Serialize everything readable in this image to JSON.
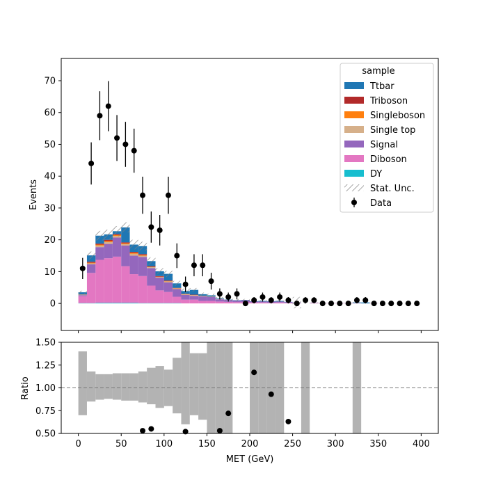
{
  "chart_data": {
    "type": "bar",
    "upper": {
      "ylabel": "Events",
      "ylim": [
        -8.5,
        77
      ],
      "yticks": [
        0,
        10,
        20,
        30,
        40,
        50,
        60,
        70
      ]
    },
    "lower": {
      "ylabel": "Ratio",
      "ylim": [
        0.5,
        1.5
      ],
      "yticks": [
        "0.50",
        "0.75",
        "1.00",
        "1.25",
        "1.50"
      ],
      "reference_line": 1.0
    },
    "xlabel": "MET (GeV)",
    "xlim": [
      -20,
      420
    ],
    "xticks": [
      0,
      50,
      100,
      150,
      200,
      250,
      300,
      350,
      400
    ],
    "bin_edges": [
      0,
      10,
      20,
      30,
      40,
      50,
      60,
      70,
      80,
      90,
      100,
      110,
      120,
      130,
      140,
      150,
      160,
      170,
      180,
      190,
      200,
      210,
      220,
      230,
      240,
      250,
      260,
      270,
      280,
      290,
      300,
      310,
      320,
      330,
      340,
      350,
      360,
      370,
      380,
      390,
      400
    ],
    "legend": {
      "title": "sample",
      "position": "top-right",
      "stack_order_bottom_to_top": [
        "DY",
        "Diboson",
        "Signal",
        "Single top",
        "Singleboson",
        "Triboson",
        "Ttbar"
      ],
      "entries": [
        {
          "label": "Ttbar",
          "kind": "patch",
          "color": "#1f77b4"
        },
        {
          "label": "Triboson",
          "kind": "patch",
          "color": "#b22a2a"
        },
        {
          "label": "Singleboson",
          "kind": "patch",
          "color": "#ff7f0e"
        },
        {
          "label": "Single top",
          "kind": "patch",
          "color": "#d6b08a"
        },
        {
          "label": "Signal",
          "kind": "patch",
          "color": "#9467bd"
        },
        {
          "label": "Diboson",
          "kind": "patch",
          "color": "#e377c2"
        },
        {
          "label": "DY",
          "kind": "patch",
          "color": "#17becf"
        },
        {
          "label": "Stat. Unc.",
          "kind": "hatch",
          "color": "#7f7f7f"
        },
        {
          "label": "Data",
          "kind": "marker",
          "color": "#000000"
        }
      ]
    },
    "series": [
      {
        "name": "DY",
        "color": "#17becf",
        "values": [
          0.1,
          0.1,
          0.2,
          0.2,
          0.2,
          0.2,
          0.2,
          0.1,
          0.1,
          0.1,
          0.1,
          0.1,
          0,
          0,
          0,
          0,
          0,
          0,
          0,
          0,
          0,
          0,
          0,
          0,
          0,
          0,
          0,
          0,
          0,
          0,
          0,
          0,
          0,
          0,
          0,
          0,
          0,
          0,
          0,
          0
        ]
      },
      {
        "name": "Diboson",
        "color": "#e377c2",
        "values": [
          2.2,
          9.5,
          13.5,
          14.0,
          14.5,
          11.5,
          9.0,
          8.5,
          5.5,
          4.0,
          3.5,
          2.0,
          1.2,
          1.2,
          0.8,
          0.8,
          0.6,
          0.5,
          0.4,
          0.4,
          0.3,
          0.3,
          0.2,
          0.3,
          0.2,
          0.1,
          0,
          0.1,
          0.05,
          0.05,
          0.05,
          0.05,
          0.05,
          0,
          0.05,
          0,
          0,
          0,
          0,
          0
        ]
      },
      {
        "name": "Signal",
        "color": "#9467bd",
        "values": [
          0.3,
          2.7,
          4.0,
          4.5,
          6.0,
          6.5,
          5.8,
          6.0,
          5.5,
          4.0,
          3.0,
          2.4,
          1.5,
          1.2,
          1.4,
          1.2,
          0.7,
          0.6,
          0.5,
          0.6,
          0.3,
          0.3,
          0.4,
          0.3,
          0.2,
          0.1,
          0,
          0.1,
          0.05,
          0.05,
          0.05,
          0.05,
          0.05,
          0,
          0.05,
          0,
          0,
          0,
          0,
          0
        ]
      },
      {
        "name": "Single top",
        "color": "#d6b08a",
        "values": [
          0.1,
          0.3,
          0.5,
          0.6,
          0.5,
          0.4,
          0.6,
          0.4,
          0.3,
          0.2,
          0.3,
          0.2,
          0.1,
          0.2,
          0.1,
          0.1,
          0.1,
          0,
          0,
          0,
          0,
          0,
          0,
          0,
          0,
          0,
          0,
          0,
          0,
          0,
          0,
          0,
          0,
          0,
          0,
          0,
          0,
          0,
          0,
          0
        ]
      },
      {
        "name": "Singleboson",
        "color": "#ff7f0e",
        "values": [
          0.05,
          0.2,
          0.3,
          0.3,
          0.3,
          0.3,
          0.3,
          0.2,
          0.1,
          0.1,
          0.1,
          0.1,
          0.1,
          0.05,
          0.05,
          0,
          0,
          0,
          0,
          0,
          0,
          0,
          0,
          0,
          0,
          0,
          0,
          0,
          0,
          0,
          0,
          0,
          0,
          0,
          0,
          0,
          0,
          0,
          0,
          0
        ]
      },
      {
        "name": "Triboson",
        "color": "#b22a2a",
        "values": [
          0.05,
          0.3,
          0.3,
          0.4,
          0.3,
          0.3,
          0.3,
          0.3,
          0.2,
          0.2,
          0.2,
          0.1,
          0.1,
          0.1,
          0.05,
          0.05,
          0,
          0,
          0,
          0,
          0,
          0,
          0,
          0,
          0,
          0,
          0,
          0,
          0,
          0,
          0,
          0,
          0,
          0,
          0,
          0,
          0,
          0,
          0,
          0
        ]
      },
      {
        "name": "Ttbar",
        "color": "#1f77b4",
        "values": [
          0.7,
          2.0,
          2.5,
          1.7,
          0.9,
          4.7,
          2.3,
          2.5,
          1.6,
          1.5,
          2.1,
          1.4,
          0.9,
          1.5,
          0.5,
          0.4,
          0.2,
          0.1,
          0.1,
          0.1,
          0.1,
          0.2,
          0.1,
          0.2,
          0.1,
          0.05,
          0,
          0,
          0,
          0,
          0,
          0,
          0.2,
          0.3,
          0,
          0,
          0,
          0,
          0,
          0
        ]
      }
    ],
    "stat_unc": [
      0.5,
      1.2,
      1.5,
      1.5,
      1.6,
      1.6,
      1.5,
      1.4,
      1.2,
      1.0,
      1.0,
      0.8,
      0.8,
      0.6,
      0.5,
      0.5,
      0.4,
      0.4,
      0.4,
      0.3,
      0.3,
      0.2,
      0.2,
      0.3,
      0.2,
      1.8,
      0.1,
      0.1,
      0.05,
      0.05,
      0.05,
      0.05,
      0.1,
      0.1,
      0.05,
      0.05,
      0.05,
      0.05,
      0.05,
      0.05
    ],
    "data": {
      "name": "Data",
      "x": [
        5,
        15,
        25,
        35,
        45,
        55,
        65,
        75,
        85,
        95,
        105,
        115,
        125,
        135,
        145,
        155,
        165,
        175,
        185,
        195,
        205,
        215,
        225,
        235,
        245,
        255,
        265,
        275,
        285,
        295,
        305,
        315,
        325,
        335,
        345,
        355,
        365,
        375,
        385,
        395
      ],
      "y": [
        11,
        44,
        59,
        62,
        52,
        50,
        48,
        34,
        24,
        23,
        34,
        15,
        6,
        12,
        12,
        7,
        3,
        2,
        3,
        0,
        1,
        2,
        1,
        2,
        1,
        0,
        1,
        1,
        0,
        0,
        0,
        0,
        1,
        1,
        0,
        0,
        0,
        0,
        0,
        0
      ]
    },
    "ratio_band": {
      "x_bins": [
        [
          0,
          10
        ],
        [
          10,
          20
        ],
        [
          20,
          30
        ],
        [
          30,
          40
        ],
        [
          40,
          50
        ],
        [
          50,
          60
        ],
        [
          60,
          70
        ],
        [
          70,
          80
        ],
        [
          80,
          90
        ],
        [
          90,
          100
        ],
        [
          100,
          110
        ],
        [
          110,
          120
        ],
        [
          120,
          130
        ],
        [
          130,
          140
        ],
        [
          140,
          150
        ],
        [
          150,
          160
        ],
        [
          160,
          170
        ],
        [
          170,
          180
        ],
        [
          200,
          210
        ],
        [
          210,
          220
        ],
        [
          220,
          230
        ],
        [
          230,
          240
        ],
        [
          260,
          270
        ],
        [
          320,
          330
        ]
      ],
      "low": [
        0.7,
        0.85,
        0.87,
        0.88,
        0.87,
        0.86,
        0.86,
        0.84,
        0.82,
        0.78,
        0.8,
        0.72,
        0.6,
        0.7,
        0.65,
        0.5,
        0.5,
        0.5,
        0.5,
        0.5,
        0.5,
        0.5,
        0.5,
        0.5
      ],
      "high": [
        1.4,
        1.18,
        1.15,
        1.15,
        1.16,
        1.16,
        1.16,
        1.18,
        1.22,
        1.24,
        1.2,
        1.33,
        1.5,
        1.38,
        1.38,
        1.5,
        1.5,
        1.5,
        1.5,
        1.5,
        1.5,
        1.5,
        1.5,
        1.5
      ]
    },
    "ratio_points": {
      "x": [
        75,
        85,
        125,
        165,
        175,
        205,
        225,
        245
      ],
      "y": [
        0.53,
        0.55,
        0.52,
        0.53,
        0.72,
        1.17,
        0.93,
        0.63
      ]
    }
  }
}
